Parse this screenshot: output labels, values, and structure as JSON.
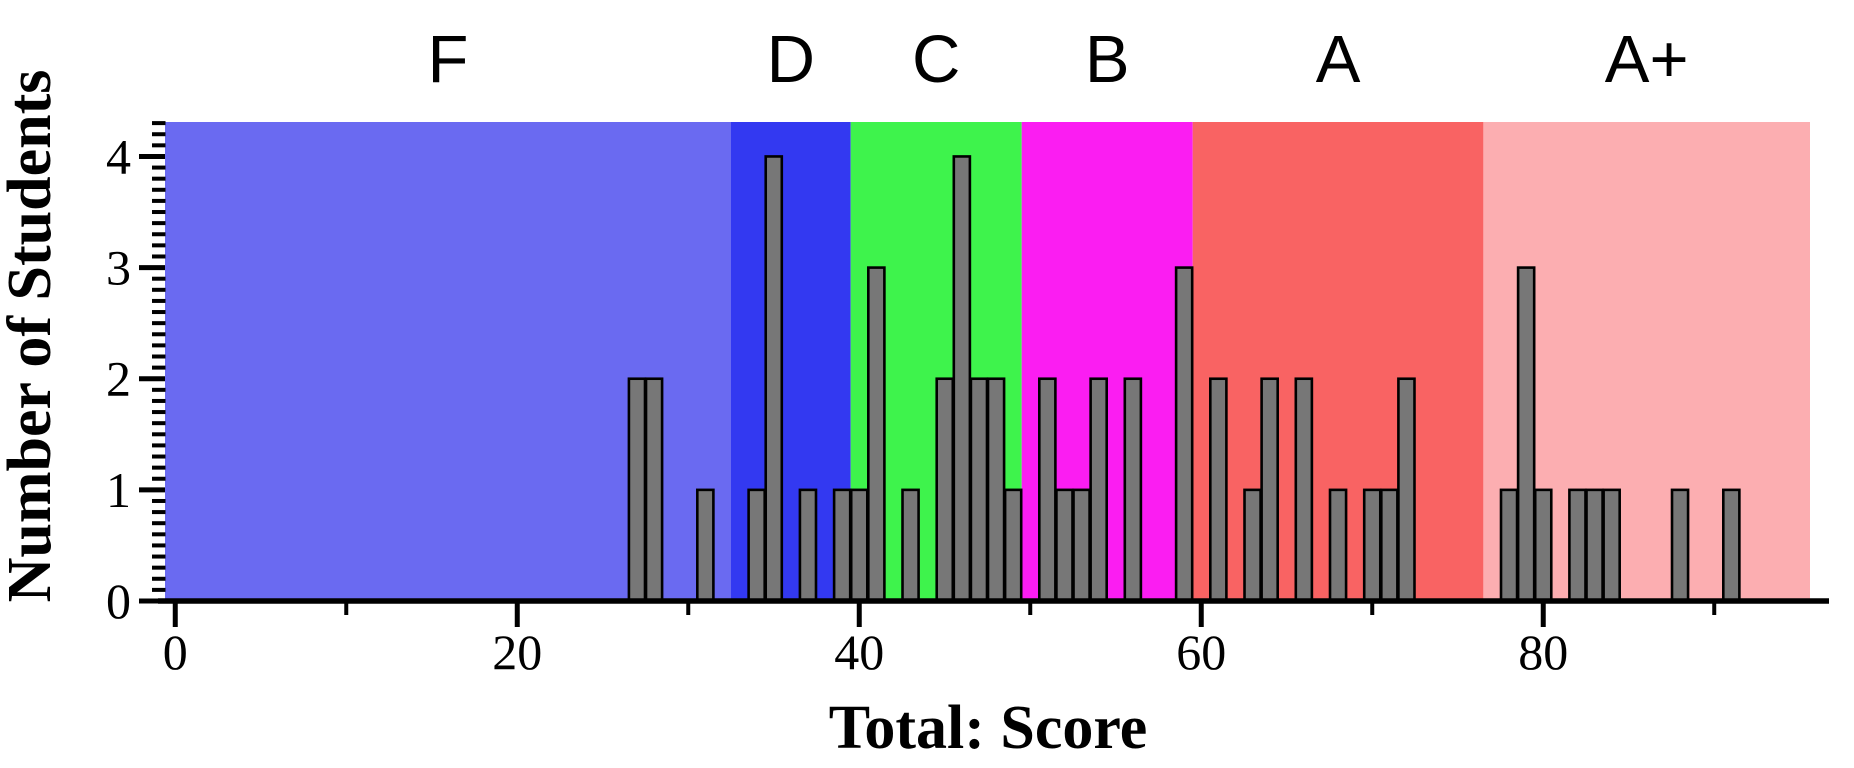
{
  "chart_data": {
    "type": "bar",
    "title": "",
    "xlabel": "Total: Score",
    "ylabel": "Number of Students",
    "legend": "none",
    "grid": "off",
    "xlim": [
      -0.6,
      95.6
    ],
    "ylim": [
      0,
      4.31
    ],
    "bar_width": 0.94,
    "bins_note": "histogram of one student-count per integer score bin; [score, number_of_students]",
    "bins": [
      [
        27,
        2
      ],
      [
        28,
        2
      ],
      [
        31,
        1
      ],
      [
        34,
        1
      ],
      [
        35,
        4
      ],
      [
        37,
        1
      ],
      [
        39,
        1
      ],
      [
        40,
        1
      ],
      [
        41,
        3
      ],
      [
        43,
        1
      ],
      [
        45,
        2
      ],
      [
        46,
        4
      ],
      [
        47,
        2
      ],
      [
        48,
        2
      ],
      [
        49,
        1
      ],
      [
        51,
        2
      ],
      [
        52,
        1
      ],
      [
        53,
        1
      ],
      [
        54,
        2
      ],
      [
        56,
        2
      ],
      [
        59,
        3
      ],
      [
        61,
        2
      ],
      [
        63,
        1
      ],
      [
        64,
        2
      ],
      [
        66,
        2
      ],
      [
        68,
        1
      ],
      [
        70,
        1
      ],
      [
        71,
        1
      ],
      [
        72,
        2
      ],
      [
        78,
        1
      ],
      [
        79,
        3
      ],
      [
        80,
        1
      ],
      [
        82,
        1
      ],
      [
        83,
        1
      ],
      [
        84,
        1
      ],
      [
        88,
        1
      ],
      [
        91,
        1
      ]
    ],
    "x_ticks_major": {
      "values": [
        0,
        20,
        40,
        60,
        80
      ],
      "labels": [
        "0",
        "20",
        "40",
        "60",
        "80"
      ]
    },
    "x_ticks_minor": [
      10,
      30,
      50,
      70,
      90
    ],
    "y_ticks_major": {
      "values": [
        0,
        1,
        2,
        3,
        4
      ],
      "labels": [
        "0",
        "1",
        "2",
        "3",
        "4"
      ]
    },
    "y_minor_step": 0.1,
    "grade_bands": [
      {
        "label": "F",
        "from": -0.6,
        "to": 32.5,
        "color": "#6a6af1"
      },
      {
        "label": "D",
        "from": 32.5,
        "to": 39.5,
        "color": "#3339f1"
      },
      {
        "label": "C",
        "from": 39.5,
        "to": 49.5,
        "color": "#3ef34c"
      },
      {
        "label": "B",
        "from": 49.5,
        "to": 59.5,
        "color": "#fb1df2"
      },
      {
        "label": "A",
        "from": 59.5,
        "to": 76.5,
        "color": "#f96363"
      },
      {
        "label": "A+",
        "from": 76.5,
        "to": 95.6,
        "color": "#fcaeb1"
      }
    ],
    "colors": {
      "bar_fill": "#777777",
      "bar_stroke": "#000000",
      "axis": "#000000",
      "background": "#ffffff"
    }
  }
}
